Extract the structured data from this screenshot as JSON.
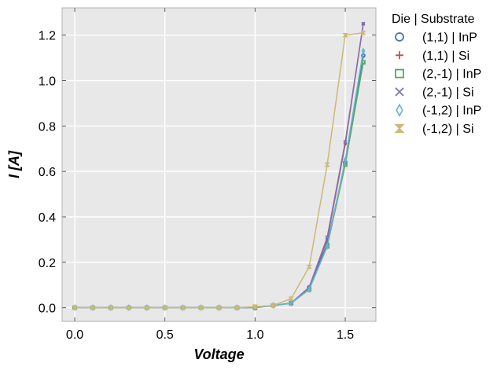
{
  "chart_data": {
    "type": "line",
    "title": "",
    "xlabel": "Voltage",
    "ylabel": "I [A]",
    "xlim": [
      -0.07,
      1.67
    ],
    "ylim": [
      -0.06,
      1.32
    ],
    "xticks": [
      0.0,
      0.5,
      1.0,
      1.5
    ],
    "xtick_labels": [
      "0.0",
      "0.5",
      "1.0",
      "1.5"
    ],
    "yticks": [
      0.0,
      0.2,
      0.4,
      0.6,
      0.8,
      1.0,
      1.2
    ],
    "ytick_labels": [
      "0.0",
      "0.2",
      "0.4",
      "0.6",
      "0.8",
      "1.0",
      "1.2"
    ],
    "grid": true,
    "background": "#e8e8e8",
    "legend": {
      "title": "Die | Substrate",
      "placement": "outside-right"
    },
    "x": [
      0.0,
      0.1,
      0.2,
      0.3,
      0.4,
      0.5,
      0.6,
      0.7,
      0.8,
      0.9,
      1.0,
      1.1,
      1.2,
      1.3,
      1.4,
      1.5,
      1.6
    ],
    "series": [
      {
        "name": "(1,1) | InP",
        "color": "#4c72b0",
        "marker": "circle",
        "values": [
          0,
          0,
          0,
          0,
          0,
          0,
          0,
          0,
          0,
          0,
          0,
          0.01,
          0.02,
          0.09,
          0.28,
          0.64,
          1.11
        ]
      },
      {
        "name": "(1,1) | Si",
        "color": "#c44e52",
        "marker": "plus",
        "values": [
          0,
          0,
          0,
          0,
          0,
          0,
          0,
          0,
          0,
          0,
          0,
          0.01,
          0.02,
          0.09,
          0.3,
          0.72,
          1.25
        ]
      },
      {
        "name": "(2,-1) | InP",
        "color": "#55a868",
        "marker": "square",
        "values": [
          0,
          0,
          0,
          0,
          0,
          0,
          0,
          0,
          0,
          0,
          0,
          0.01,
          0.02,
          0.08,
          0.27,
          0.63,
          1.08
        ]
      },
      {
        "name": "(2,-1) | Si",
        "color": "#8172b2",
        "marker": "x",
        "values": [
          0,
          0,
          0,
          0,
          0,
          0,
          0,
          0,
          0,
          0,
          0,
          0.01,
          0.02,
          0.09,
          0.31,
          0.73,
          1.25
        ]
      },
      {
        "name": "(-1,2) | InP",
        "color": "#64b5cd",
        "marker": "thin-diamond",
        "values": [
          0,
          0,
          0,
          0,
          0,
          0,
          0,
          0,
          0,
          0,
          0,
          0.01,
          0.02,
          0.08,
          0.27,
          0.65,
          1.13
        ]
      },
      {
        "name": "(-1,2) | Si",
        "color": "#ccb974",
        "marker": "hourglass",
        "values": [
          0,
          0,
          0,
          0,
          0,
          0,
          0,
          0,
          0,
          0,
          0.005,
          0.01,
          0.04,
          0.18,
          0.63,
          1.2,
          1.21
        ]
      }
    ]
  }
}
